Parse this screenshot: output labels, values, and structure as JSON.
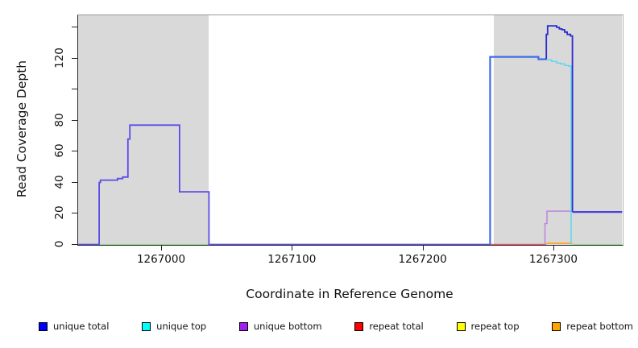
{
  "figure": {
    "x_axis_title": "Coordinate in Reference Genome",
    "y_axis_title": "Read Coverage Depth"
  },
  "chart_data": {
    "type": "line",
    "subtype": "step-coverage-plot",
    "title": "",
    "xlabel": "Coordinate in Reference Genome",
    "ylabel": "Read Coverage Depth",
    "xlim": [
      1266936,
      1267352
    ],
    "ylim": [
      0,
      148
    ],
    "grid": false,
    "legend_position": "bottom",
    "x_ticks": [
      {
        "value": 1267000,
        "label": "1267000"
      },
      {
        "value": 1267100,
        "label": "1267100"
      },
      {
        "value": 1267200,
        "label": "1267200"
      },
      {
        "value": 1267300,
        "label": "1267300"
      }
    ],
    "y_ticks": [
      {
        "value": 0,
        "label": "0"
      },
      {
        "value": 20,
        "label": "20"
      },
      {
        "value": 40,
        "label": "40"
      },
      {
        "value": 60,
        "label": "60"
      },
      {
        "value": 80,
        "label": "80"
      },
      {
        "value": 100,
        "label": ""
      },
      {
        "value": 120,
        "label": "120"
      },
      {
        "value": 140,
        "label": ""
      }
    ],
    "highlight_bands": [
      {
        "x0": 1266936,
        "x1": 1267036,
        "color": "#d9d9d9"
      },
      {
        "x0": 1267254,
        "x1": 1267352,
        "color": "#d9d9d9"
      }
    ],
    "legend": [
      {
        "label": "unique total",
        "color": "#0000ff"
      },
      {
        "label": "unique top",
        "color": "#00ffff"
      },
      {
        "label": "unique bottom",
        "color": "#a020f0"
      },
      {
        "label": "repeat total",
        "color": "#ff0000"
      },
      {
        "label": "repeat top",
        "color": "#ffff00"
      },
      {
        "label": "repeat bottom",
        "color": "#ffa500"
      }
    ],
    "series": [
      {
        "name": "baseline-overlap-left",
        "color": "#8fd98f",
        "width": 1.2,
        "points": [
          [
            1266952,
            0
          ],
          [
            1267036,
            0
          ]
        ]
      },
      {
        "name": "baseline-overlap-right",
        "color": "#8fd98f",
        "width": 1.2,
        "points": [
          [
            1267314,
            0
          ],
          [
            1267352,
            0
          ]
        ]
      },
      {
        "name": "repeat-total",
        "color": "#e25563",
        "width": 1.5,
        "points": [
          [
            1267251,
            0
          ],
          [
            1267294,
            0
          ]
        ]
      },
      {
        "name": "repeat-bottom",
        "color": "#ffa426",
        "width": 1.8,
        "points": [
          [
            1267294,
            0.8
          ],
          [
            1267314,
            0.8
          ]
        ]
      },
      {
        "name": "unique-bottom",
        "color": "#bc85dc",
        "width": 1.5,
        "points": [
          [
            1267293,
            0
          ],
          [
            1267293,
            13.5
          ],
          [
            1267294.5,
            13.5
          ],
          [
            1267294.5,
            21.5
          ],
          [
            1267313,
            21.5
          ]
        ]
      },
      {
        "name": "unique-top",
        "color": "#5fd8ee",
        "width": 1.5,
        "points": [
          [
            1267294,
            119
          ],
          [
            1267298,
            119
          ],
          [
            1267298,
            118
          ],
          [
            1267302,
            118
          ],
          [
            1267302,
            117
          ],
          [
            1267305,
            117
          ],
          [
            1267305,
            116.5
          ],
          [
            1267308,
            116.5
          ],
          [
            1267308,
            115.5
          ],
          [
            1267311,
            115.5
          ],
          [
            1267311,
            115
          ],
          [
            1267313,
            115
          ],
          [
            1267313,
            0
          ]
        ]
      },
      {
        "name": "unique-total-left",
        "color": "#5b4be8",
        "width": 1.8,
        "points": [
          [
            1266936,
            0
          ],
          [
            1266952,
            0
          ],
          [
            1266952,
            40
          ],
          [
            1266953,
            40
          ],
          [
            1266953,
            41.5
          ],
          [
            1266966,
            41.5
          ],
          [
            1266966,
            42.5
          ],
          [
            1266970,
            42.5
          ],
          [
            1266970,
            43.5
          ],
          [
            1266974,
            43.5
          ],
          [
            1266974,
            68
          ],
          [
            1266975.5,
            68
          ],
          [
            1266975.5,
            77
          ],
          [
            1267013.5,
            77
          ],
          [
            1267013.5,
            34
          ],
          [
            1267036,
            34
          ],
          [
            1267036,
            0
          ],
          [
            1267251,
            0
          ]
        ]
      },
      {
        "name": "unique-total-right-plateau",
        "color": "#3f6be8",
        "width": 2.2,
        "points": [
          [
            1267251,
            0
          ],
          [
            1267251,
            121
          ],
          [
            1267288,
            121
          ],
          [
            1267288,
            119.5
          ],
          [
            1267294,
            119.5
          ]
        ]
      },
      {
        "name": "unique-total-right-peak",
        "color": "#2b2bd0",
        "width": 1.8,
        "points": [
          [
            1267294,
            119.5
          ],
          [
            1267294,
            135.5
          ],
          [
            1267295,
            135.5
          ],
          [
            1267295,
            141
          ],
          [
            1267302,
            141
          ],
          [
            1267302,
            140
          ],
          [
            1267304,
            140
          ],
          [
            1267304,
            139
          ],
          [
            1267306,
            139
          ],
          [
            1267306,
            138.5
          ],
          [
            1267308,
            138.5
          ],
          [
            1267308,
            137
          ],
          [
            1267310,
            137
          ],
          [
            1267310,
            135.5
          ],
          [
            1267312.5,
            135.5
          ],
          [
            1267312.5,
            134.5
          ],
          [
            1267314,
            134.5
          ],
          [
            1267314,
            21
          ]
        ]
      },
      {
        "name": "unique-total-right-tail",
        "color": "#4a3ee0",
        "width": 2.2,
        "points": [
          [
            1267314,
            21
          ],
          [
            1267352,
            21
          ]
        ]
      }
    ]
  }
}
